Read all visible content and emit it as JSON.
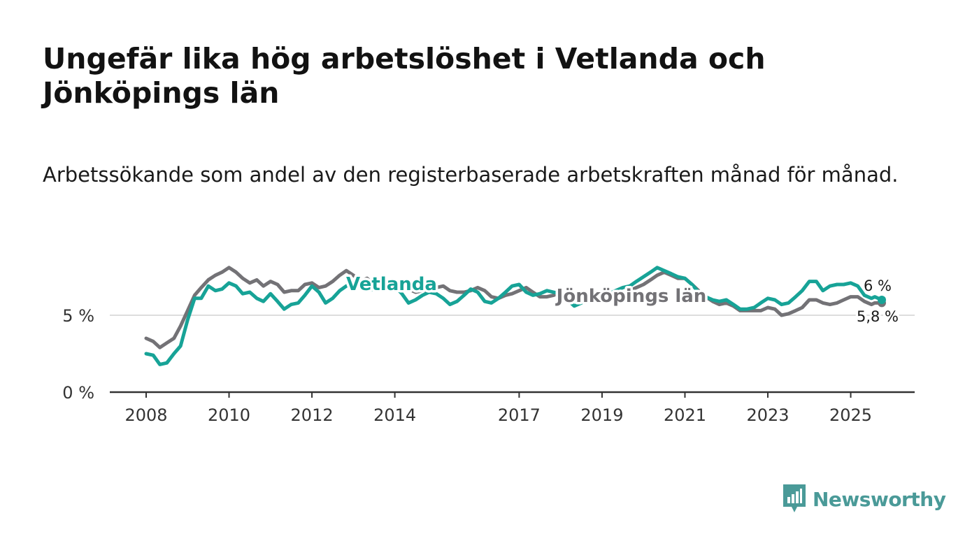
{
  "title": "Ungefär lika hög arbetslöshet i Vetlanda och Jönköpings län",
  "subtitle": "Arbetssökande som andel av den registerbaserade arbetskraften månad för månad.",
  "brand": "Newsworthy",
  "colors": {
    "vetlanda": "#17a397",
    "lan": "#737276",
    "axis": "#333333",
    "grid": "#dddddd",
    "brand": "#4a9a98"
  },
  "chart_data": {
    "type": "line",
    "title": "Ungefär lika hög arbetslöshet i Vetlanda och Jönköpings län",
    "xlabel": "",
    "ylabel": "",
    "xlim": [
      2008,
      2025.75
    ],
    "ylim": [
      0,
      8.3
    ],
    "y_ticks": [
      {
        "value": 0,
        "label": "0 %"
      },
      {
        "value": 5,
        "label": "5 %"
      }
    ],
    "x_ticks": [
      {
        "value": 2008,
        "label": "2008"
      },
      {
        "value": 2010,
        "label": "2010"
      },
      {
        "value": 2012,
        "label": "2012"
      },
      {
        "value": 2014,
        "label": "2014"
      },
      {
        "value": 2017,
        "label": "2017"
      },
      {
        "value": 2019,
        "label": "2019"
      },
      {
        "value": 2021,
        "label": "2021"
      },
      {
        "value": 2023,
        "label": "2023"
      },
      {
        "value": 2025,
        "label": "2025"
      }
    ],
    "series": [
      {
        "name": "Jönköpings län",
        "label": "Jönköpings län",
        "end_label": "5,8 %",
        "points": [
          [
            2008.0,
            3.5
          ],
          [
            2008.17,
            3.3
          ],
          [
            2008.33,
            2.9
          ],
          [
            2008.5,
            3.2
          ],
          [
            2008.67,
            3.5
          ],
          [
            2008.83,
            4.3
          ],
          [
            2009.0,
            5.3
          ],
          [
            2009.17,
            6.3
          ],
          [
            2009.33,
            6.8
          ],
          [
            2009.5,
            7.3
          ],
          [
            2009.67,
            7.6
          ],
          [
            2009.83,
            7.8
          ],
          [
            2010.0,
            8.1
          ],
          [
            2010.17,
            7.8
          ],
          [
            2010.33,
            7.4
          ],
          [
            2010.5,
            7.1
          ],
          [
            2010.67,
            7.3
          ],
          [
            2010.83,
            6.9
          ],
          [
            2011.0,
            7.2
          ],
          [
            2011.17,
            7.0
          ],
          [
            2011.33,
            6.5
          ],
          [
            2011.5,
            6.6
          ],
          [
            2011.67,
            6.6
          ],
          [
            2011.83,
            7.0
          ],
          [
            2012.0,
            7.1
          ],
          [
            2012.17,
            6.8
          ],
          [
            2012.33,
            6.9
          ],
          [
            2012.5,
            7.2
          ],
          [
            2012.67,
            7.6
          ],
          [
            2012.83,
            7.9
          ],
          [
            2013.0,
            7.6
          ],
          [
            2013.17,
            7.2
          ],
          [
            2013.33,
            7.4
          ],
          [
            2013.5,
            7.0
          ],
          [
            2013.67,
            7.1
          ],
          [
            2013.83,
            6.8
          ],
          [
            2014.0,
            6.8
          ],
          [
            2014.17,
            6.6
          ],
          [
            2014.33,
            6.7
          ],
          [
            2014.5,
            6.5
          ],
          [
            2014.67,
            6.6
          ],
          [
            2014.83,
            6.6
          ],
          [
            2015.0,
            6.8
          ],
          [
            2015.17,
            6.9
          ],
          [
            2015.33,
            6.6
          ],
          [
            2015.5,
            6.5
          ],
          [
            2015.67,
            6.5
          ],
          [
            2015.83,
            6.6
          ],
          [
            2016.0,
            6.8
          ],
          [
            2016.17,
            6.6
          ],
          [
            2016.33,
            6.2
          ],
          [
            2016.5,
            6.1
          ],
          [
            2016.67,
            6.3
          ],
          [
            2016.83,
            6.4
          ],
          [
            2017.0,
            6.6
          ],
          [
            2017.17,
            6.8
          ],
          [
            2017.33,
            6.5
          ],
          [
            2017.5,
            6.2
          ],
          [
            2017.67,
            6.2
          ],
          [
            2017.83,
            6.3
          ],
          [
            2018.0,
            6.5
          ],
          [
            2018.17,
            6.3
          ],
          [
            2018.33,
            6.0
          ],
          [
            2018.5,
            5.9
          ],
          [
            2018.67,
            6.0
          ],
          [
            2018.83,
            6.1
          ],
          [
            2019.0,
            6.3
          ],
          [
            2019.17,
            6.3
          ],
          [
            2019.33,
            6.2
          ],
          [
            2019.5,
            6.4
          ],
          [
            2019.67,
            6.6
          ],
          [
            2019.83,
            6.8
          ],
          [
            2020.0,
            7.0
          ],
          [
            2020.17,
            7.3
          ],
          [
            2020.33,
            7.6
          ],
          [
            2020.5,
            7.8
          ],
          [
            2020.67,
            7.6
          ],
          [
            2020.83,
            7.4
          ],
          [
            2021.0,
            7.4
          ],
          [
            2021.17,
            7.0
          ],
          [
            2021.33,
            6.6
          ],
          [
            2021.5,
            6.2
          ],
          [
            2021.67,
            5.9
          ],
          [
            2021.83,
            5.7
          ],
          [
            2022.0,
            5.8
          ],
          [
            2022.17,
            5.6
          ],
          [
            2022.33,
            5.3
          ],
          [
            2022.5,
            5.3
          ],
          [
            2022.67,
            5.3
          ],
          [
            2022.83,
            5.3
          ],
          [
            2023.0,
            5.5
          ],
          [
            2023.17,
            5.4
          ],
          [
            2023.33,
            5.0
          ],
          [
            2023.5,
            5.1
          ],
          [
            2023.67,
            5.3
          ],
          [
            2023.83,
            5.5
          ],
          [
            2024.0,
            6.0
          ],
          [
            2024.17,
            6.0
          ],
          [
            2024.33,
            5.8
          ],
          [
            2024.5,
            5.7
          ],
          [
            2024.67,
            5.8
          ],
          [
            2024.83,
            6.0
          ],
          [
            2025.0,
            6.2
          ],
          [
            2025.17,
            6.2
          ],
          [
            2025.33,
            5.9
          ],
          [
            2025.5,
            5.7
          ],
          [
            2025.58,
            5.8
          ],
          [
            2025.75,
            5.8
          ]
        ]
      },
      {
        "name": "Vetlanda",
        "label": "Vetlanda",
        "end_label": "6 %",
        "points": [
          [
            2008.0,
            2.5
          ],
          [
            2008.17,
            2.4
          ],
          [
            2008.33,
            1.8
          ],
          [
            2008.5,
            1.9
          ],
          [
            2008.67,
            2.5
          ],
          [
            2008.83,
            3.0
          ],
          [
            2009.0,
            4.7
          ],
          [
            2009.17,
            6.1
          ],
          [
            2009.33,
            6.1
          ],
          [
            2009.5,
            6.9
          ],
          [
            2009.67,
            6.6
          ],
          [
            2009.83,
            6.7
          ],
          [
            2010.0,
            7.1
          ],
          [
            2010.17,
            6.9
          ],
          [
            2010.33,
            6.4
          ],
          [
            2010.5,
            6.5
          ],
          [
            2010.67,
            6.1
          ],
          [
            2010.83,
            5.9
          ],
          [
            2011.0,
            6.4
          ],
          [
            2011.17,
            5.9
          ],
          [
            2011.33,
            5.4
          ],
          [
            2011.5,
            5.7
          ],
          [
            2011.67,
            5.8
          ],
          [
            2011.83,
            6.3
          ],
          [
            2012.0,
            6.9
          ],
          [
            2012.17,
            6.5
          ],
          [
            2012.33,
            5.8
          ],
          [
            2012.5,
            6.1
          ],
          [
            2012.67,
            6.6
          ],
          [
            2012.83,
            6.9
          ],
          [
            2013.0,
            7.2
          ],
          [
            2013.17,
            6.8
          ],
          [
            2013.33,
            6.6
          ],
          [
            2013.5,
            6.7
          ],
          [
            2013.67,
            6.8
          ],
          [
            2013.83,
            7.0
          ],
          [
            2014.0,
            6.9
          ],
          [
            2014.17,
            6.4
          ],
          [
            2014.33,
            5.8
          ],
          [
            2014.5,
            6.0
          ],
          [
            2014.67,
            6.3
          ],
          [
            2014.83,
            6.5
          ],
          [
            2015.0,
            6.4
          ],
          [
            2015.17,
            6.1
          ],
          [
            2015.33,
            5.7
          ],
          [
            2015.5,
            5.9
          ],
          [
            2015.67,
            6.3
          ],
          [
            2015.83,
            6.7
          ],
          [
            2016.0,
            6.5
          ],
          [
            2016.17,
            5.9
          ],
          [
            2016.33,
            5.8
          ],
          [
            2016.5,
            6.1
          ],
          [
            2016.67,
            6.5
          ],
          [
            2016.83,
            6.9
          ],
          [
            2017.0,
            7.0
          ],
          [
            2017.17,
            6.5
          ],
          [
            2017.33,
            6.3
          ],
          [
            2017.5,
            6.4
          ],
          [
            2017.67,
            6.6
          ],
          [
            2017.83,
            6.5
          ],
          [
            2018.0,
            6.4
          ],
          [
            2018.17,
            6.0
          ],
          [
            2018.33,
            5.6
          ],
          [
            2018.5,
            5.8
          ],
          [
            2018.67,
            6.1
          ],
          [
            2018.83,
            6.2
          ],
          [
            2019.0,
            6.3
          ],
          [
            2019.17,
            6.4
          ],
          [
            2019.33,
            6.6
          ],
          [
            2019.5,
            6.8
          ],
          [
            2019.67,
            6.9
          ],
          [
            2019.83,
            7.2
          ],
          [
            2020.0,
            7.5
          ],
          [
            2020.17,
            7.8
          ],
          [
            2020.33,
            8.1
          ],
          [
            2020.5,
            7.9
          ],
          [
            2020.67,
            7.7
          ],
          [
            2020.83,
            7.5
          ],
          [
            2021.0,
            7.4
          ],
          [
            2021.17,
            7.0
          ],
          [
            2021.33,
            6.5
          ],
          [
            2021.5,
            6.2
          ],
          [
            2021.67,
            6.0
          ],
          [
            2021.83,
            5.9
          ],
          [
            2022.0,
            6.0
          ],
          [
            2022.17,
            5.7
          ],
          [
            2022.33,
            5.4
          ],
          [
            2022.5,
            5.4
          ],
          [
            2022.67,
            5.5
          ],
          [
            2022.83,
            5.8
          ],
          [
            2023.0,
            6.1
          ],
          [
            2023.17,
            6.0
          ],
          [
            2023.33,
            5.7
          ],
          [
            2023.5,
            5.8
          ],
          [
            2023.67,
            6.2
          ],
          [
            2023.83,
            6.6
          ],
          [
            2024.0,
            7.2
          ],
          [
            2024.17,
            7.2
          ],
          [
            2024.33,
            6.6
          ],
          [
            2024.5,
            6.9
          ],
          [
            2024.67,
            7.0
          ],
          [
            2024.83,
            7.0
          ],
          [
            2025.0,
            7.1
          ],
          [
            2025.17,
            6.9
          ],
          [
            2025.33,
            6.3
          ],
          [
            2025.5,
            6.1
          ],
          [
            2025.58,
            6.2
          ],
          [
            2025.75,
            6.0
          ]
        ]
      }
    ]
  }
}
